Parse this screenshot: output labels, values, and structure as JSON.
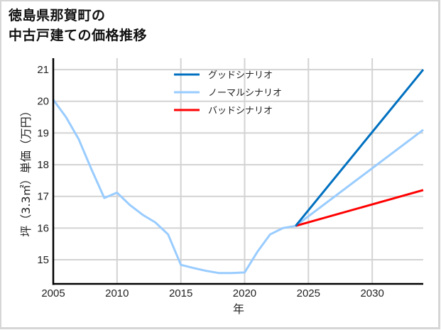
{
  "title_line1": "徳島県那賀町の",
  "title_line2": "中古戸建ての価格推移",
  "chart_data": {
    "type": "line",
    "title": "徳島県那賀町の中古戸建ての価格推移",
    "xlabel": "年",
    "ylabel": "坪（3.3㎡）単価（万円）",
    "xlim": [
      2005,
      2034
    ],
    "ylim": [
      14.24,
      21.36
    ],
    "xticks": [
      2005,
      2010,
      2015,
      2020,
      2025,
      2030
    ],
    "yticks": [
      15,
      16,
      17,
      18,
      19,
      20,
      21
    ],
    "grid": true,
    "legend_position": "upper center",
    "series": [
      {
        "name": "グッドシナリオ",
        "color": "#0070c0",
        "x": [
          2024,
          2034
        ],
        "values": [
          16.07,
          21.0
        ]
      },
      {
        "name": "ノーマルシナリオ",
        "color": "#99ccff",
        "x": [
          2005,
          2006,
          2007,
          2008,
          2009,
          2010,
          2011,
          2012,
          2013,
          2014,
          2015,
          2016,
          2017,
          2018,
          2019,
          2020,
          2021,
          2022,
          2023,
          2024,
          2034
        ],
        "values": [
          20.05,
          19.5,
          18.8,
          17.85,
          16.95,
          17.12,
          16.73,
          16.42,
          16.18,
          15.8,
          14.84,
          14.74,
          14.65,
          14.58,
          14.58,
          14.6,
          15.25,
          15.8,
          16.0,
          16.07,
          19.1
        ]
      },
      {
        "name": "バッドシナリオ",
        "color": "#ff0000",
        "x": [
          2024,
          2034
        ],
        "values": [
          16.07,
          17.2
        ]
      }
    ]
  }
}
